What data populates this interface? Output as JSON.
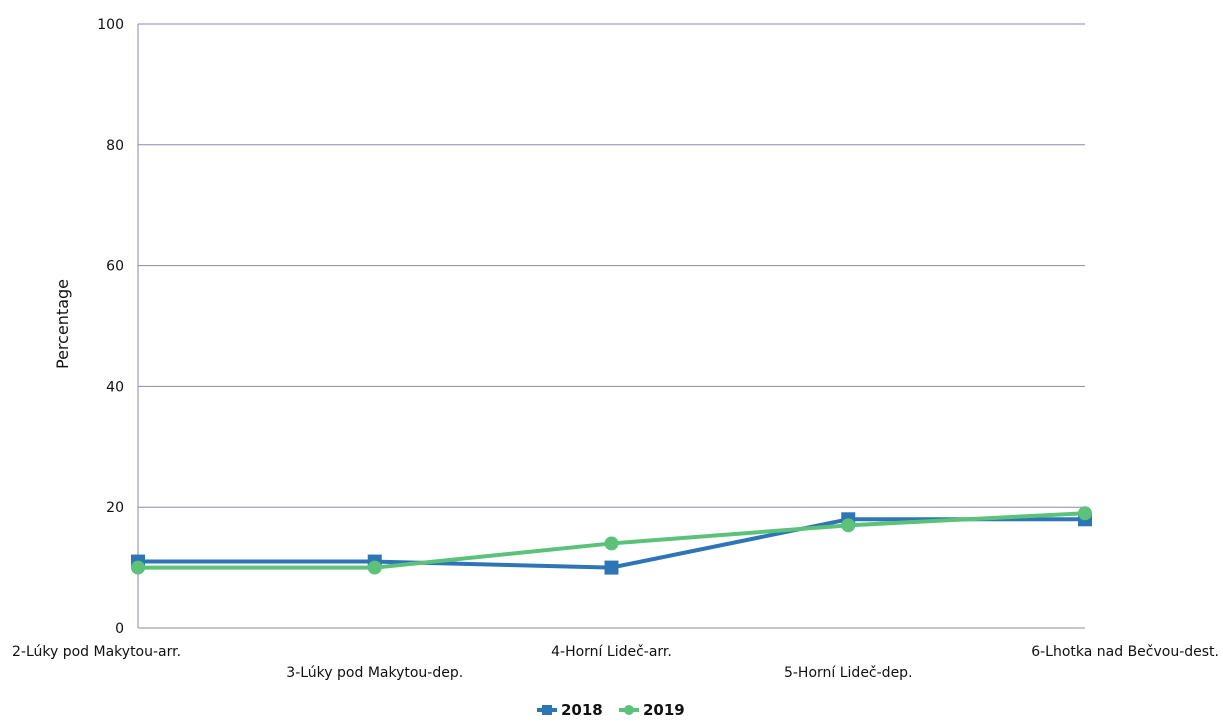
{
  "chart_data": {
    "type": "line",
    "categories": [
      "2-Lúky pod Makytou-arr.",
      "3-Lúky pod Makytou-dep.",
      "4-Horní Lideč-arr.",
      "5-Horní Lideč-dep.",
      "6-Lhotka nad Bečvou-dest."
    ],
    "series": [
      {
        "name": "2018",
        "values": [
          11,
          11,
          10,
          18,
          18
        ],
        "color": "#2E75B6",
        "marker": "square"
      },
      {
        "name": "2019",
        "values": [
          10,
          10,
          14,
          17,
          19
        ],
        "color": "#5CC27A",
        "marker": "circle"
      }
    ],
    "ylabel": "Percentage",
    "xlabel": "",
    "ylim": [
      0,
      100
    ],
    "yticks": [
      0,
      20,
      40,
      60,
      80,
      100
    ],
    "grid": true,
    "legend_position": "bottom"
  }
}
